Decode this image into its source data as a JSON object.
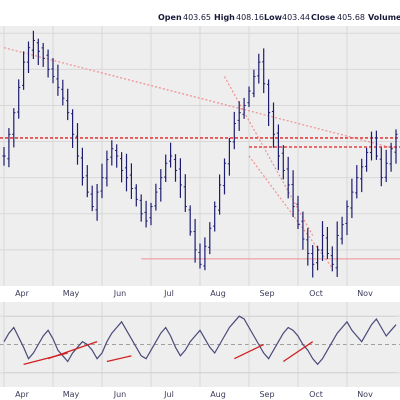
{
  "header": {
    "open_label": "Open",
    "open_value": "403.65",
    "high_label": "High",
    "high_value": "408.16",
    "low_label": "Low",
    "low_value": "403.44",
    "close_label": "Close",
    "close_value": "405.68",
    "volume_label": "Volume"
  },
  "chart_data": [
    {
      "type": "ohlc",
      "x_tick_labels": [
        "Apr",
        "May",
        "Jun",
        "Jul",
        "Aug",
        "Sep",
        "Oct",
        "Nov"
      ],
      "series": [
        {
          "values": [
            366,
            372,
            378,
            385,
            392,
            396,
            398,
            395,
            393,
            390,
            388,
            385,
            382,
            378,
            372,
            366,
            360,
            356,
            352,
            356,
            360,
            365,
            368,
            366,
            362,
            360,
            357,
            354,
            350,
            348,
            352,
            356,
            360,
            364,
            366,
            362,
            358,
            352,
            345,
            340,
            336,
            341,
            346,
            352,
            358,
            364,
            370,
            375,
            378,
            380,
            384,
            388,
            392,
            386,
            378,
            372,
            366,
            362,
            358,
            352,
            347,
            343,
            339,
            336,
            340,
            344,
            339,
            336,
            344,
            347,
            352,
            356,
            360,
            363,
            367,
            371,
            366,
            360,
            364,
            368,
            372
          ]
        }
      ],
      "annotations": {
        "resistance_dashed_level": 371,
        "long_downtrend_line": [
          [
            0,
            396
          ],
          [
            80,
            368
          ]
        ],
        "channel_upper_line": [
          [
            45,
            388
          ],
          [
            63,
            344
          ]
        ],
        "channel_lower_line": [
          [
            50,
            366
          ],
          [
            67,
            335
          ]
        ],
        "support_line_level": 337.5
      }
    },
    {
      "type": "line",
      "indicator_values": [
        52,
        58,
        62,
        55,
        48,
        40,
        44,
        50,
        56,
        60,
        54,
        46,
        42,
        38,
        44,
        48,
        52,
        50,
        46,
        40,
        44,
        52,
        58,
        62,
        66,
        60,
        54,
        48,
        42,
        40,
        46,
        52,
        58,
        62,
        56,
        48,
        42,
        46,
        52,
        56,
        60,
        54,
        48,
        44,
        50,
        56,
        62,
        66,
        70,
        68,
        62,
        56,
        50,
        44,
        40,
        46,
        52,
        58,
        62,
        60,
        56,
        50,
        46,
        40,
        36,
        40,
        46,
        52,
        58,
        62,
        66,
        60,
        56,
        52,
        58,
        64,
        68,
        62,
        56,
        60,
        64
      ],
      "reference_levels": [
        30,
        50,
        70
      ],
      "rising_trendlines": [
        [
          [
            4,
            36
          ],
          [
            13,
            44
          ]
        ],
        [
          [
            9,
            40
          ],
          [
            19,
            52
          ]
        ],
        [
          [
            21,
            38
          ],
          [
            26,
            42
          ]
        ],
        [
          [
            47,
            40
          ],
          [
            53,
            50
          ]
        ],
        [
          [
            57,
            38
          ],
          [
            63,
            52
          ]
        ]
      ]
    }
  ],
  "colors": {
    "bar": "#1c1c70",
    "red_dashed": "#e02020",
    "trend_pink": "#f09090",
    "indicator_line": "#4a4a7a",
    "indicator_fill": "#4a4a7a",
    "trendline_red": "#d02020",
    "panel_bg": "#eeeeee",
    "grid": "#d8d8d8"
  }
}
